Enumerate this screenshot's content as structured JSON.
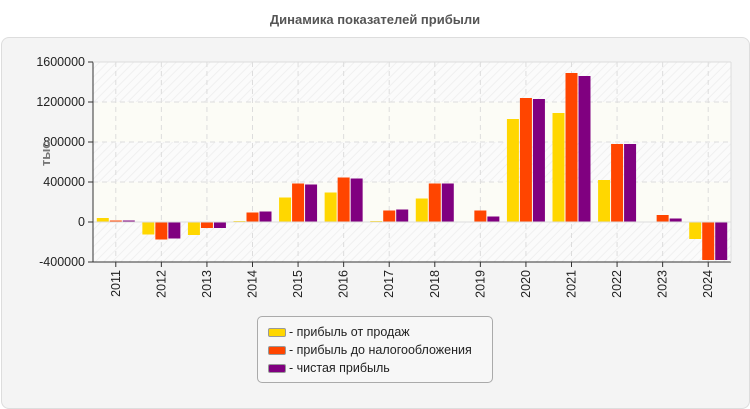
{
  "chart_data": {
    "type": "bar",
    "title": "Динамика показателей прибыли",
    "ylabel": "тыс.",
    "xlabel": "",
    "ylim": [
      -400000,
      1600000
    ],
    "yticks": [
      "1600000",
      "1200000",
      "800000",
      "400000",
      "0",
      "-400000"
    ],
    "ytick_values": [
      1600000,
      1200000,
      800000,
      400000,
      0,
      -400000
    ],
    "grid": true,
    "legend_position": "bottom",
    "categories": [
      "2011",
      "2012",
      "2013",
      "2014",
      "2015",
      "2016",
      "2017",
      "2018",
      "2019",
      "2020",
      "2021",
      "2022",
      "2023",
      "2024"
    ],
    "series": [
      {
        "name": "- прибыль от продаж",
        "color": "#FFD700",
        "values": [
          40000,
          -125000,
          -130000,
          10000,
          245000,
          295000,
          10000,
          235000,
          5000,
          1030000,
          1090000,
          420000,
          5000,
          -170000
        ]
      },
      {
        "name": "- прибыль до налогообложения",
        "color": "#FF4500",
        "values": [
          15000,
          -175000,
          -60000,
          95000,
          385000,
          445000,
          115000,
          385000,
          115000,
          1240000,
          1490000,
          780000,
          70000,
          -380000
        ]
      },
      {
        "name": "- чистая прибыль",
        "color": "#800080",
        "values": [
          15000,
          -165000,
          -60000,
          105000,
          375000,
          435000,
          125000,
          385000,
          55000,
          1230000,
          1460000,
          780000,
          35000,
          -380000
        ]
      }
    ]
  }
}
